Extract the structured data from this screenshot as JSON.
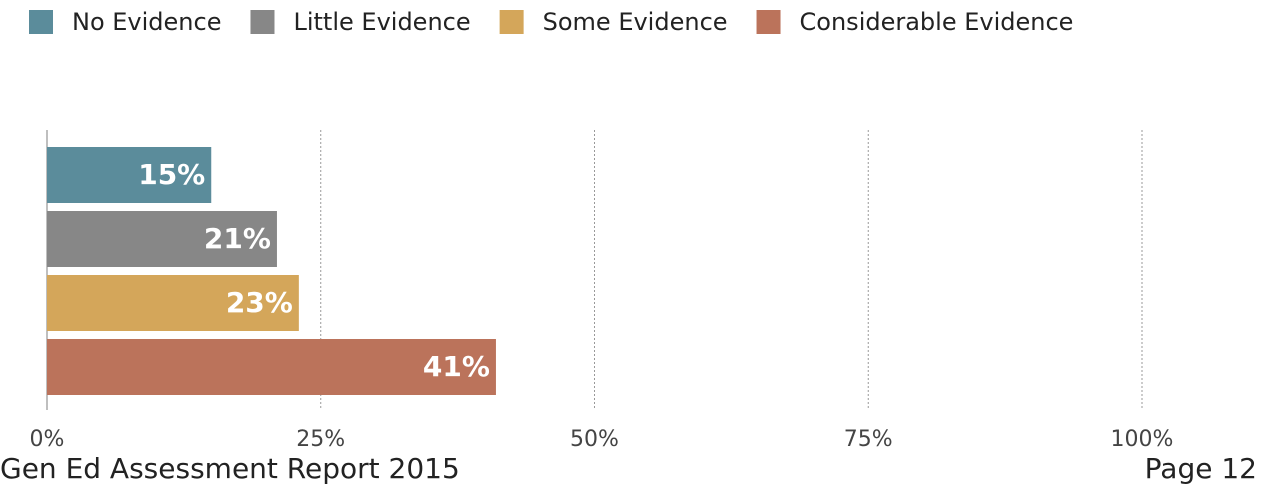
{
  "chart_data": {
    "type": "bar",
    "orientation": "horizontal",
    "series": [
      {
        "name": "No Evidence",
        "color": "#5b8c9b",
        "values": [
          15
        ],
        "value_labels": [
          "15%"
        ]
      },
      {
        "name": "Little Evidence",
        "color": "#878787",
        "values": [
          21
        ],
        "value_labels": [
          "21%"
        ]
      },
      {
        "name": "Some Evidence",
        "color": "#d4a65a",
        "values": [
          23
        ],
        "value_labels": [
          "23%"
        ]
      },
      {
        "name": "Considerable Evidence",
        "color": "#bb735b",
        "values": [
          41
        ],
        "value_labels": [
          "41%"
        ]
      }
    ],
    "xlim": [
      0,
      100
    ],
    "xticks": [
      {
        "value": 0,
        "label": "0%"
      },
      {
        "value": 25,
        "label": "25%"
      },
      {
        "value": 50,
        "label": "50%"
      },
      {
        "value": 75,
        "label": "75%"
      },
      {
        "value": 100,
        "label": "100%"
      }
    ],
    "grid": true,
    "legend": "top"
  },
  "footer": {
    "left": "Gen Ed Assessment Report 2015",
    "right": "Page 12"
  }
}
